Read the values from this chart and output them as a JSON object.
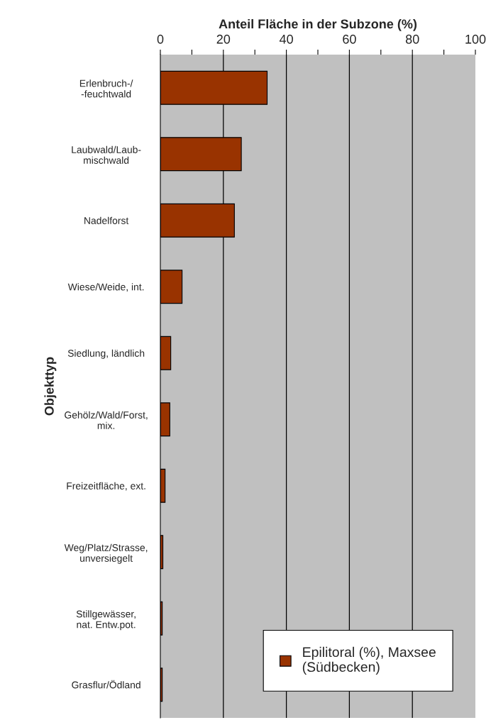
{
  "chart_data": {
    "type": "bar",
    "orientation": "horizontal",
    "xlabel": "Anteil Fläche in der Subzone (%)",
    "ylabel": "Objekttyp",
    "categories": [
      "Erlenbruch-/\n-feuchtwald",
      "Laubwald/Laub-\nmischwald",
      "Nadelforst",
      "Wiese/Weide, int.",
      "Siedlung, ländlich",
      "Gehölz/Wald/Forst,\nmix.",
      "Freizeitfläche, ext.",
      "Weg/Platz/Strasse,\nunversiegelt",
      "Stillgewässer,\nnat. Entw.pot.",
      "Grasflur/Ödland"
    ],
    "series": [
      {
        "name": "Epilitoral (%), Maxsee\n(Südbecken)",
        "color": "#993300",
        "values": [
          33.9,
          25.7,
          23.5,
          6.9,
          3.3,
          3.0,
          1.5,
          0.8,
          0.6,
          0.6
        ]
      }
    ],
    "xlim": [
      0,
      100
    ],
    "xticks": [
      0,
      {
        "value": 10,
        "label": null
      },
      20,
      {
        "value": 30,
        "label": null
      },
      40,
      {
        "value": 50,
        "label": null
      },
      60,
      {
        "value": 70,
        "label": null
      },
      80,
      {
        "value": 90,
        "label": null
      },
      100
    ],
    "grid": "x",
    "legend": "bottom right"
  }
}
